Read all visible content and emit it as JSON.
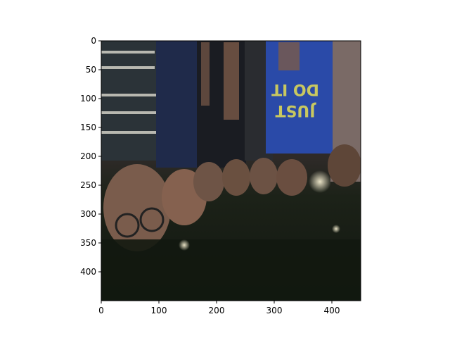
{
  "chart_data": {
    "type": "image",
    "title": "",
    "xlabel": "",
    "ylabel": "",
    "xlim": [
      0,
      450
    ],
    "ylim": [
      450,
      0
    ],
    "x_ticks": [
      0,
      100,
      200,
      300,
      400
    ],
    "y_ticks": [
      0,
      50,
      100,
      150,
      200,
      250,
      300,
      350,
      400
    ],
    "x_tick_labels": [
      "0",
      "100",
      "200",
      "300",
      "400"
    ],
    "y_tick_labels": [
      "0",
      "50",
      "100",
      "150",
      "200",
      "250",
      "300",
      "350",
      "400"
    ],
    "image_description": "Upside-down night photo of a group of smiling people lying on grass, faces along the middle, one person in a navy 'JUST DO IT' t-shirt at top right",
    "grid": false
  },
  "colors": {
    "sky": "#3a3030",
    "grass": "#1a1f14",
    "shirt_navy": "#24335e",
    "shirt_blue": "#2a4aa8",
    "skin": "#8a6a58",
    "axis": "#000000"
  }
}
